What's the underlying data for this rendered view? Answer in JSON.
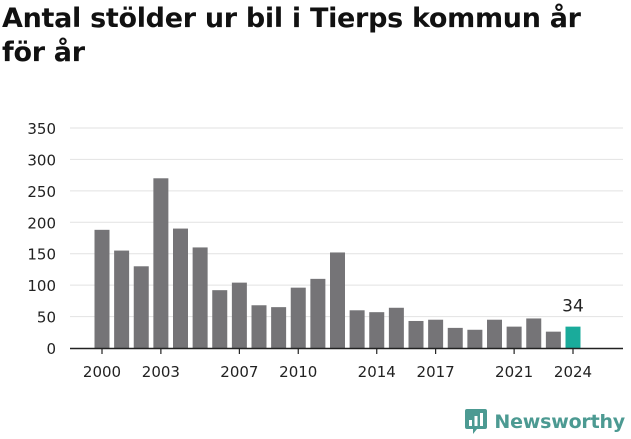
{
  "chart_data": {
    "type": "bar",
    "title": "Antal stölder ur bil i Tierps kommun år för år",
    "x": [
      2000,
      2001,
      2002,
      2003,
      2004,
      2005,
      2006,
      2007,
      2008,
      2009,
      2010,
      2011,
      2012,
      2013,
      2014,
      2015,
      2016,
      2017,
      2018,
      2019,
      2020,
      2021,
      2022,
      2023,
      2024
    ],
    "values": [
      188,
      155,
      130,
      270,
      190,
      160,
      92,
      104,
      68,
      65,
      96,
      110,
      152,
      60,
      57,
      64,
      43,
      45,
      32,
      29,
      45,
      34,
      47,
      26,
      34
    ],
    "x_tick_labels": [
      "2000",
      "2003",
      "2007",
      "2010",
      "2014",
      "2017",
      "2021",
      "2024"
    ],
    "y_tick_labels": [
      "0",
      "50",
      "100",
      "150",
      "200",
      "250",
      "300",
      "350"
    ],
    "ylim": [
      0,
      350
    ],
    "grid": true,
    "highlight": {
      "x": 2024,
      "label": "34"
    },
    "colors": {
      "bar": "#757477",
      "highlight": "#1aab9b",
      "grid": "#e2e2e2",
      "axis": "#222222"
    }
  },
  "brand": {
    "name": "Newsworthy",
    "icon": "bar-chart-speech-bubble-icon",
    "color": "#4c9a92"
  }
}
